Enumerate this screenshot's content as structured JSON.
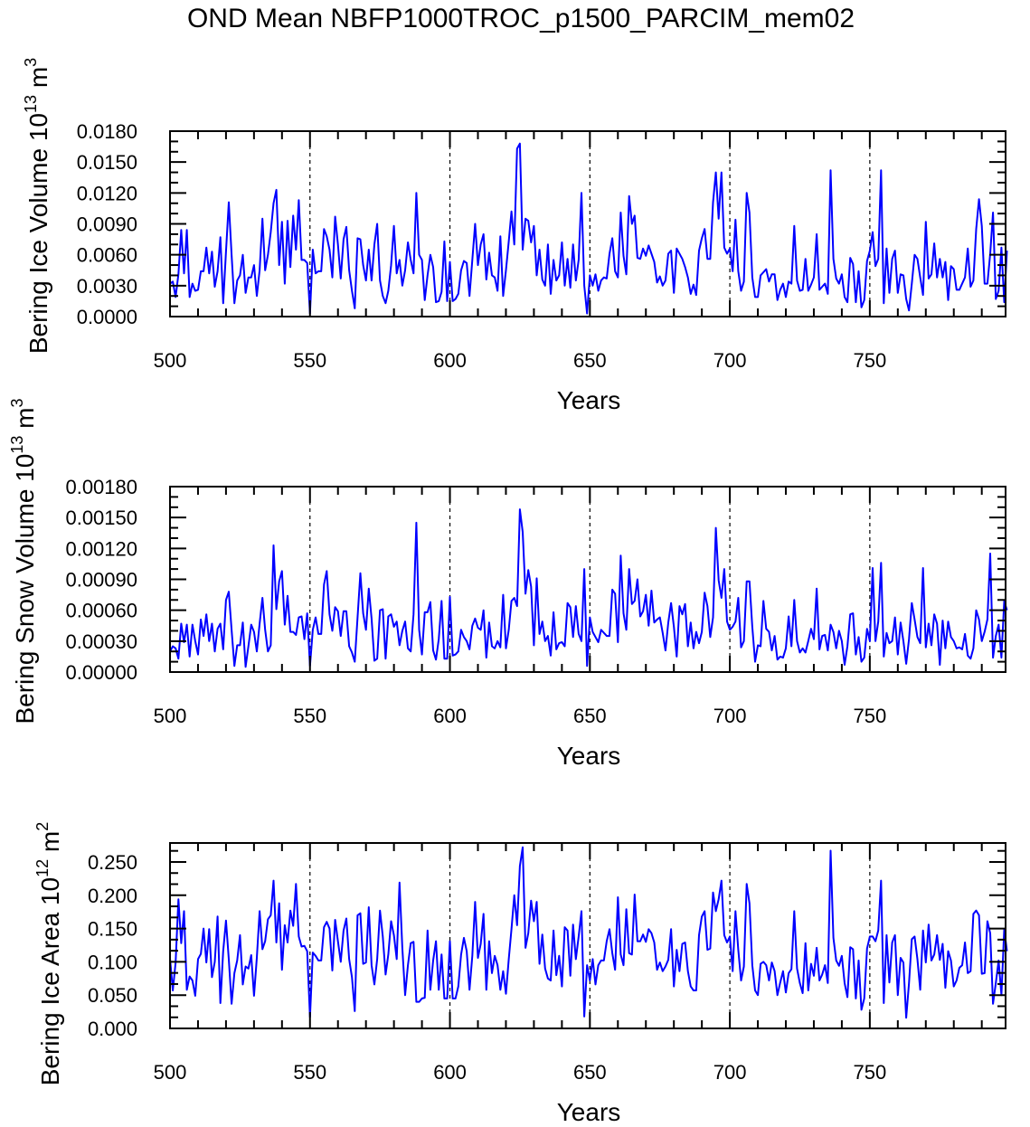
{
  "title": "OND Mean NBFP1000TROC_p1500_PARCIM_mem02",
  "line_color": "#0000ff",
  "chart_data": [
    {
      "type": "line",
      "ylabel": "Bering Ice Volume",
      "yunits": {
        "base": "10",
        "exp": "13",
        "unit": "m",
        "unit_exp": "3"
      },
      "xlabel": "Years",
      "xlim": [
        500,
        798.5
      ],
      "ylim": [
        0,
        0.018
      ],
      "xticks": [
        500,
        550,
        600,
        650,
        700,
        750
      ],
      "xtick_labels": [
        "500",
        "550",
        "600",
        "650",
        "700",
        "750"
      ],
      "yticks": [
        0,
        0.003,
        0.006,
        0.009,
        0.012,
        0.015,
        0.018
      ],
      "ytick_labels": [
        "0.0000",
        "0.0030",
        "0.0060",
        "0.0090",
        "0.0120",
        "0.0150",
        "0.0180"
      ],
      "grid": "dashed vertical lines at 550, 600, 650, 700, 750",
      "x_start": 500,
      "values": [
        0.0032,
        0.0034,
        0.0019,
        0.0041,
        0.0084,
        0.0042,
        0.0084,
        0.0019,
        0.0032,
        0.0025,
        0.0026,
        0.0044,
        0.0044,
        0.0067,
        0.0042,
        0.0063,
        0.0029,
        0.0044,
        0.0077,
        0.0013,
        0.0063,
        0.0111,
        0.006,
        0.0013,
        0.0035,
        0.004,
        0.006,
        0.0023,
        0.0038,
        0.0038,
        0.005,
        0.002,
        0.0045,
        0.0095,
        0.0045,
        0.006,
        0.0082,
        0.011,
        0.0123,
        0.005,
        0.0092,
        0.0032,
        0.0093,
        0.0048,
        0.0098,
        0.0065,
        0.0113,
        0.0055,
        0.0055,
        0.0052,
        0.0003,
        0.0065,
        0.0042,
        0.0044,
        0.0044,
        0.0085,
        0.0078,
        0.0065,
        0.0038,
        0.0097,
        0.007,
        0.0037,
        0.0075,
        0.0087,
        0.0045,
        0.0025,
        0.0008,
        0.0076,
        0.0075,
        0.005,
        0.0035,
        0.0065,
        0.0035,
        0.007,
        0.009,
        0.0035,
        0.002,
        0.0013,
        0.0025,
        0.005,
        0.0088,
        0.0042,
        0.0055,
        0.003,
        0.0045,
        0.0072,
        0.0055,
        0.0042,
        0.012,
        0.006,
        0.0055,
        0.0016,
        0.004,
        0.006,
        0.0048,
        0.0014,
        0.0015,
        0.0024,
        0.0073,
        0.0015,
        0.0053,
        0.0015,
        0.0017,
        0.0022,
        0.0045,
        0.0054,
        0.0052,
        0.002,
        0.0055,
        0.009,
        0.005,
        0.007,
        0.008,
        0.0036,
        0.0062,
        0.004,
        0.0038,
        0.0025,
        0.0078,
        0.002,
        0.0045,
        0.0073,
        0.0102,
        0.007,
        0.0163,
        0.0168,
        0.0065,
        0.0095,
        0.0093,
        0.0072,
        0.0088,
        0.004,
        0.0065,
        0.0036,
        0.003,
        0.007,
        0.0022,
        0.0055,
        0.0035,
        0.004,
        0.0072,
        0.003,
        0.0056,
        0.0028,
        0.007,
        0.0035,
        0.0055,
        0.012,
        0.003,
        0.0003,
        0.004,
        0.003,
        0.0041,
        0.0025,
        0.0035,
        0.0038,
        0.0037,
        0.0061,
        0.0076,
        0.0044,
        0.0038,
        0.0101,
        0.0059,
        0.0041,
        0.0117,
        0.009,
        0.0098,
        0.0057,
        0.0056,
        0.0066,
        0.0059,
        0.0069,
        0.0061,
        0.0053,
        0.0033,
        0.0039,
        0.003,
        0.0035,
        0.0061,
        0.0064,
        0.0023,
        0.0066,
        0.0061,
        0.0056,
        0.0048,
        0.0038,
        0.0022,
        0.0031,
        0.0021,
        0.0064,
        0.0076,
        0.0085,
        0.0056,
        0.0056,
        0.0111,
        0.014,
        0.0095,
        0.014,
        0.0067,
        0.0061,
        0.0066,
        0.0044,
        0.0094,
        0.0044,
        0.0025,
        0.0034,
        0.012,
        0.0101,
        0.0038,
        0.0019,
        0.0019,
        0.004,
        0.0043,
        0.0046,
        0.0034,
        0.0041,
        0.0041,
        0.0016,
        0.0026,
        0.0032,
        0.0019,
        0.0034,
        0.0032,
        0.0088,
        0.0035,
        0.0025,
        0.0026,
        0.0056,
        0.0025,
        0.0031,
        0.0038,
        0.008,
        0.0026,
        0.0029,
        0.0032,
        0.0022,
        0.0142,
        0.0056,
        0.0037,
        0.0032,
        0.0041,
        0.0019,
        0.0014,
        0.0057,
        0.0051,
        0.0014,
        0.0044,
        0.0009,
        0.0016,
        0.0054,
        0.0064,
        0.0082,
        0.0049,
        0.0056,
        0.0142,
        0.0013,
        0.0066,
        0.0023,
        0.0056,
        0.0064,
        0.0023,
        0.0041,
        0.004,
        0.0017,
        0.0006,
        0.0032,
        0.006,
        0.0056,
        0.0038,
        0.0021,
        0.0092,
        0.0037,
        0.0041,
        0.0071,
        0.0038,
        0.0056,
        0.0038,
        0.0053,
        0.0016,
        0.0049,
        0.0046,
        0.0026,
        0.0026,
        0.0032,
        0.0038,
        0.0066,
        0.0029,
        0.0035,
        0.0085,
        0.0114,
        0.0088,
        0.0032,
        0.0032,
        0.0061,
        0.0101,
        0.0017,
        0.0025,
        0.0067,
        0.0014,
        0.0064
      ]
    },
    {
      "type": "line",
      "ylabel": "Bering Snow Volume",
      "yunits": {
        "base": "10",
        "exp": "13",
        "unit": "m",
        "unit_exp": "3"
      },
      "xlabel": "Years",
      "xlim": [
        500,
        798.5
      ],
      "ylim": [
        0,
        0.0018
      ],
      "xticks": [
        500,
        550,
        600,
        650,
        700,
        750
      ],
      "xtick_labels": [
        "500",
        "550",
        "600",
        "650",
        "700",
        "750"
      ],
      "yticks": [
        0,
        0.0003,
        0.0006,
        0.0009,
        0.0012,
        0.0015,
        0.0018
      ],
      "ytick_labels": [
        "0.00000",
        "0.00030",
        "0.00060",
        "0.00090",
        "0.00120",
        "0.00150",
        "0.00180"
      ],
      "grid": "dashed vertical lines at 550, 600, 650, 700, 750",
      "x_start": 500,
      "values": [
        0.0002,
        0.00025,
        0.00023,
        0.00013,
        0.00047,
        0.00029,
        0.00046,
        0.00015,
        0.00046,
        0.0003,
        0.00017,
        0.00051,
        0.00035,
        0.00056,
        0.0003,
        0.00047,
        0.0002,
        0.00042,
        0.00047,
        0.00022,
        0.0007,
        0.00078,
        0.00041,
        6e-05,
        0.00026,
        0.00026,
        0.00048,
        5e-05,
        0.00025,
        0.00046,
        0.00039,
        0.0002,
        0.00047,
        0.00072,
        0.00041,
        0.0002,
        0.00026,
        0.00123,
        0.00061,
        0.00088,
        0.00098,
        0.00046,
        0.00074,
        0.00039,
        0.00039,
        0.00036,
        0.00053,
        0.00054,
        0.00032,
        0.00057,
        6e-05,
        0.00041,
        0.00053,
        0.00037,
        0.00037,
        0.00085,
        0.00098,
        0.00056,
        0.0004,
        0.00063,
        0.00059,
        0.00035,
        0.00059,
        0.00059,
        0.00025,
        0.00019,
        0.0001,
        0.00053,
        0.00096,
        0.00057,
        0.00041,
        0.00081,
        0.00052,
        0.00011,
        0.00013,
        0.0006,
        0.00061,
        0.00013,
        0.00054,
        0.00056,
        0.00044,
        0.00049,
        0.00026,
        0.0004,
        0.00049,
        0.00023,
        0.0002,
        0.00056,
        0.00145,
        0.00041,
        0.00017,
        0.00058,
        0.00058,
        0.00068,
        0.00021,
        0.00012,
        0.00032,
        0.00069,
        0.00013,
        0.00013,
        0.00073,
        0.00016,
        0.00017,
        0.0002,
        0.00041,
        0.00034,
        0.0003,
        0.00022,
        0.00045,
        0.00052,
        0.00043,
        0.00041,
        0.0006,
        0.00014,
        0.00048,
        0.00025,
        0.00023,
        0.0003,
        0.00024,
        0.00075,
        0.00023,
        0.00041,
        0.00069,
        0.00072,
        0.00064,
        0.00158,
        0.00136,
        0.00076,
        0.00099,
        0.00083,
        0.00026,
        0.00091,
        0.00037,
        0.00049,
        0.0003,
        0.00035,
        0.00016,
        0.00058,
        0.00022,
        0.00028,
        0.00029,
        0.00025,
        0.00067,
        0.00063,
        0.00034,
        0.00064,
        0.00037,
        0.0003,
        0.001,
        6e-05,
        0.00053,
        0.00039,
        0.00034,
        0.00029,
        0.00041,
        0.00038,
        0.00035,
        0.00035,
        0.0008,
        0.00076,
        0.00029,
        0.00113,
        0.00057,
        0.00041,
        0.001,
        0.00066,
        0.00069,
        0.0009,
        0.00054,
        0.00059,
        0.00075,
        0.00045,
        0.00079,
        0.00048,
        0.00051,
        0.00053,
        0.00038,
        0.00021,
        0.00048,
        0.00067,
        0.00044,
        0.00015,
        0.00064,
        0.00056,
        0.00066,
        0.00025,
        0.00048,
        0.00023,
        0.00039,
        0.00028,
        0.00039,
        0.00077,
        0.00064,
        0.00034,
        0.00053,
        0.0014,
        0.00089,
        0.00072,
        0.001,
        0.00049,
        0.00041,
        0.00044,
        0.00049,
        0.00072,
        0.00024,
        0.0003,
        0.00088,
        0.00088,
        0.00044,
        0.0001,
        0.00026,
        0.00025,
        0.00069,
        0.00042,
        0.00039,
        0.00021,
        0.00035,
        0.00012,
        0.00015,
        0.00014,
        0.00023,
        0.00054,
        0.00025,
        0.0007,
        0.0003,
        0.00019,
        0.00023,
        0.00019,
        0.0003,
        0.00042,
        0.00032,
        0.00081,
        0.00022,
        0.00035,
        0.00036,
        0.00021,
        0.00046,
        0.00039,
        0.00023,
        0.0004,
        0.0003,
        7e-05,
        0.00025,
        0.00056,
        0.00057,
        0.00017,
        0.00034,
        0.0001,
        0.00014,
        0.00042,
        0.0003,
        0.00101,
        0.0003,
        0.00049,
        0.00106,
        0.00015,
        0.00038,
        0.00028,
        0.0003,
        0.00053,
        0.00017,
        0.00048,
        0.0003,
        8e-05,
        0.00032,
        0.00067,
        0.00051,
        0.00034,
        0.00028,
        0.00101,
        0.00024,
        0.00047,
        0.00026,
        0.00056,
        0.00047,
        7e-05,
        0.0005,
        0.00023,
        0.00049,
        0.00034,
        0.0003,
        0.00023,
        0.00024,
        0.00022,
        0.00037,
        0.00016,
        0.00013,
        0.00023,
        0.0006,
        0.00051,
        0.0003,
        0.00039,
        0.00051,
        0.00115,
        0.00014,
        0.00035,
        0.00046,
        0.00014,
        0.00069,
        0.0006
      ]
    },
    {
      "type": "line",
      "ylabel": "Bering Ice Area",
      "yunits": {
        "base": "10",
        "exp": "12",
        "unit": "m",
        "unit_exp": "2"
      },
      "xlabel": "Years",
      "xlim": [
        500,
        798.5
      ],
      "ylim": [
        0,
        0.2785
      ],
      "xticks": [
        500,
        550,
        600,
        650,
        700,
        750
      ],
      "xtick_labels": [
        "500",
        "550",
        "600",
        "650",
        "700",
        "750"
      ],
      "yticks": [
        0,
        0.05,
        0.1,
        0.15,
        0.2,
        0.25
      ],
      "ytick_labels": [
        "0.000",
        "0.050",
        "0.100",
        "0.150",
        "0.200",
        "0.250"
      ],
      "grid": "dashed vertical lines at 550, 600, 650, 700, 750",
      "x_start": 500,
      "values": [
        0.105,
        0.057,
        0.099,
        0.194,
        0.128,
        0.176,
        0.058,
        0.078,
        0.072,
        0.049,
        0.104,
        0.112,
        0.15,
        0.099,
        0.149,
        0.077,
        0.1,
        0.168,
        0.038,
        0.116,
        0.162,
        0.104,
        0.037,
        0.083,
        0.102,
        0.14,
        0.066,
        0.093,
        0.09,
        0.11,
        0.049,
        0.106,
        0.176,
        0.119,
        0.131,
        0.164,
        0.17,
        0.222,
        0.129,
        0.188,
        0.088,
        0.155,
        0.129,
        0.177,
        0.154,
        0.217,
        0.138,
        0.123,
        0.124,
        0.116,
        0.017,
        0.114,
        0.109,
        0.102,
        0.102,
        0.152,
        0.16,
        0.15,
        0.087,
        0.163,
        0.131,
        0.1,
        0.147,
        0.165,
        0.104,
        0.077,
        0.026,
        0.17,
        0.173,
        0.097,
        0.099,
        0.182,
        0.095,
        0.066,
        0.104,
        0.177,
        0.138,
        0.081,
        0.111,
        0.161,
        0.14,
        0.104,
        0.219,
        0.121,
        0.05,
        0.095,
        0.128,
        0.13,
        0.04,
        0.04,
        0.045,
        0.046,
        0.147,
        0.058,
        0.102,
        0.131,
        0.058,
        0.111,
        0.045,
        0.045,
        0.131,
        0.045,
        0.045,
        0.063,
        0.111,
        0.136,
        0.116,
        0.058,
        0.109,
        0.19,
        0.106,
        0.127,
        0.172,
        0.058,
        0.131,
        0.083,
        0.109,
        0.095,
        0.058,
        0.086,
        0.052,
        0.104,
        0.149,
        0.2,
        0.155,
        0.244,
        0.272,
        0.121,
        0.143,
        0.192,
        0.161,
        0.19,
        0.097,
        0.141,
        0.09,
        0.075,
        0.072,
        0.147,
        0.08,
        0.109,
        0.063,
        0.152,
        0.147,
        0.079,
        0.156,
        0.104,
        0.138,
        0.176,
        0.018,
        0.095,
        0.072,
        0.104,
        0.066,
        0.095,
        0.102,
        0.102,
        0.131,
        0.149,
        0.113,
        0.088,
        0.197,
        0.111,
        0.095,
        0.179,
        0.113,
        0.111,
        0.201,
        0.131,
        0.131,
        0.141,
        0.13,
        0.149,
        0.143,
        0.129,
        0.088,
        0.099,
        0.086,
        0.093,
        0.103,
        0.149,
        0.063,
        0.118,
        0.086,
        0.127,
        0.129,
        0.086,
        0.063,
        0.057,
        0.057,
        0.14,
        0.168,
        0.176,
        0.118,
        0.12,
        0.204,
        0.176,
        0.194,
        0.222,
        0.14,
        0.129,
        0.138,
        0.086,
        0.176,
        0.118,
        0.072,
        0.093,
        0.217,
        0.188,
        0.095,
        0.057,
        0.05,
        0.097,
        0.1,
        0.095,
        0.072,
        0.099,
        0.086,
        0.05,
        0.069,
        0.086,
        0.054,
        0.083,
        0.089,
        0.176,
        0.09,
        0.068,
        0.053,
        0.128,
        0.057,
        0.097,
        0.079,
        0.121,
        0.072,
        0.081,
        0.095,
        0.068,
        0.267,
        0.136,
        0.102,
        0.094,
        0.109,
        0.068,
        0.047,
        0.122,
        0.119,
        0.045,
        0.102,
        0.028,
        0.045,
        0.12,
        0.138,
        0.138,
        0.131,
        0.147,
        0.222,
        0.038,
        0.14,
        0.069,
        0.129,
        0.14,
        0.05,
        0.106,
        0.099,
        0.016,
        0.068,
        0.134,
        0.138,
        0.104,
        0.058,
        0.147,
        0.099,
        0.156,
        0.102,
        0.111,
        0.14,
        0.103,
        0.127,
        0.061,
        0.116,
        0.102,
        0.063,
        0.072,
        0.091,
        0.095,
        0.129,
        0.083,
        0.086,
        0.172,
        0.177,
        0.17,
        0.082,
        0.083,
        0.161,
        0.143,
        0.037,
        0.068,
        0.102,
        0.05,
        0.149,
        0.116
      ]
    }
  ]
}
